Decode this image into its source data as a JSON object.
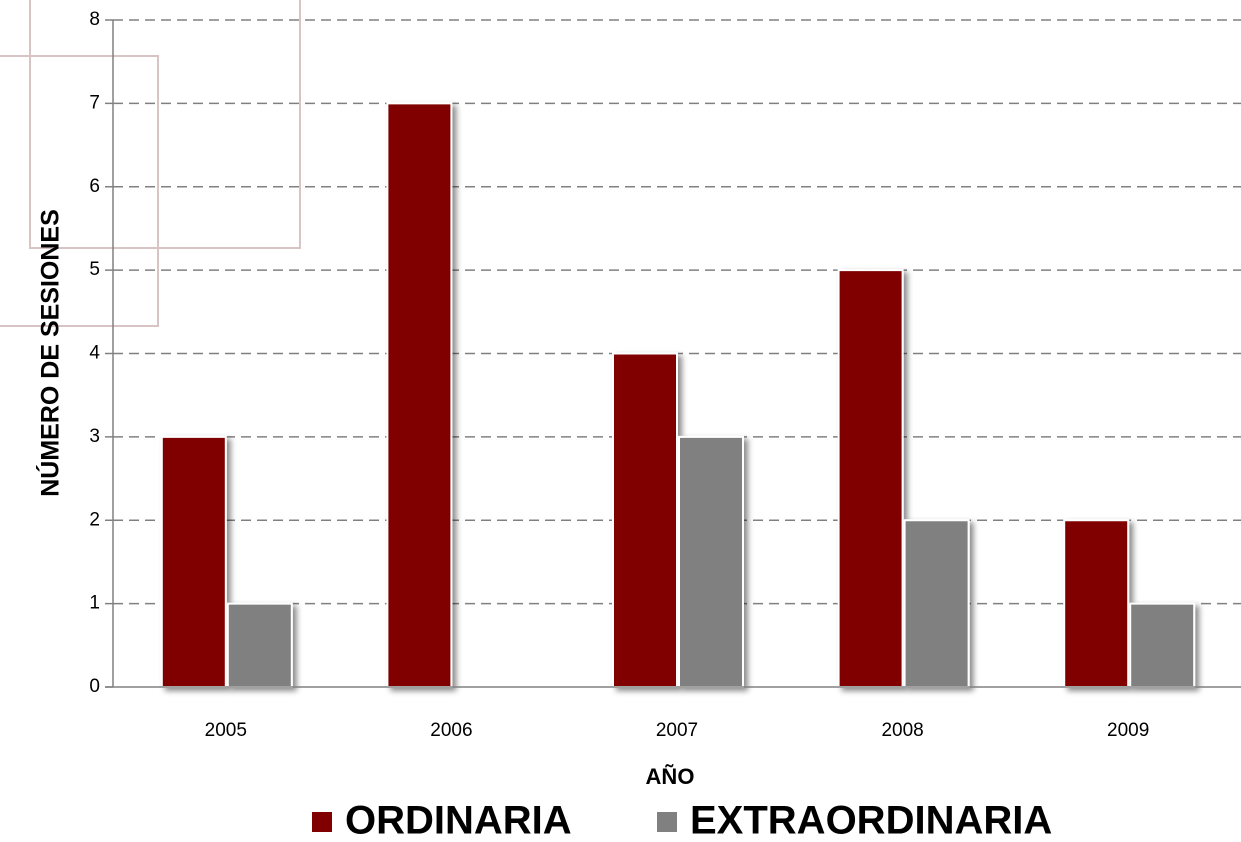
{
  "chart_data": {
    "type": "bar",
    "y_label": "NÚMERO DE SESIONES",
    "x_label": "AÑO",
    "categories": [
      "2005",
      "2006",
      "2007",
      "2008",
      "2009"
    ],
    "series": [
      {
        "name": "ORDINARIA",
        "color": "#800000",
        "values": [
          3,
          7,
          4,
          5,
          2
        ]
      },
      {
        "name": "EXTRAORDINARIA",
        "color": "#808080",
        "values": [
          1,
          0,
          3,
          2,
          1
        ]
      }
    ],
    "ylim": [
      0,
      8
    ],
    "yticks": [
      0,
      1,
      2,
      3,
      4,
      5,
      6,
      7,
      8
    ],
    "grid": true
  }
}
